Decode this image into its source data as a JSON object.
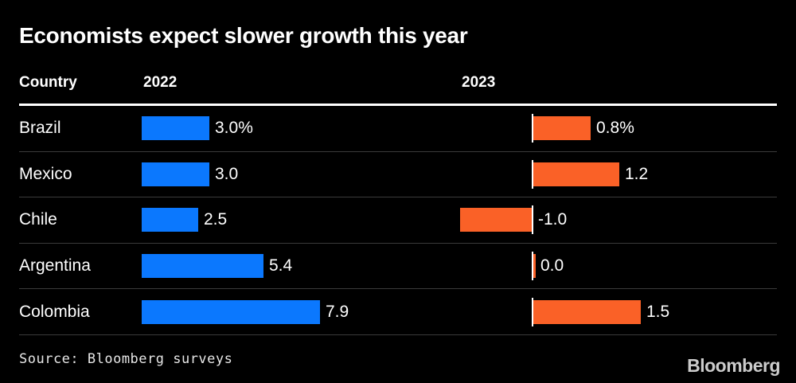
{
  "title": "Economists expect slower growth this year",
  "headers": {
    "country": "Country",
    "y2022": "2022",
    "y2023": "2023"
  },
  "rows": [
    {
      "country": "Brazil",
      "v2022": 3.0,
      "label2022": "3.0%",
      "v2023": 0.8,
      "label2023": "0.8%"
    },
    {
      "country": "Mexico",
      "v2022": 3.0,
      "label2022": "3.0",
      "v2023": 1.2,
      "label2023": "1.2"
    },
    {
      "country": "Chile",
      "v2022": 2.5,
      "label2022": "2.5",
      "v2023": -1.0,
      "label2023": "-1.0"
    },
    {
      "country": "Argentina",
      "v2022": 5.4,
      "label2022": "5.4",
      "v2023": 0.0,
      "label2023": "0.0"
    },
    {
      "country": "Colombia",
      "v2022": 7.9,
      "label2022": "7.9",
      "v2023": 1.5,
      "label2023": "1.5"
    }
  ],
  "source": "Source: Bloomberg surveys",
  "logo": "Bloomberg",
  "colors": {
    "background": "#000000",
    "text": "#ffffff",
    "bar2022": "#0b78fe",
    "bar2023": "#fa6127",
    "divider": "#3b3b3b",
    "rule": "#ffffff"
  },
  "chart_data": {
    "type": "bar",
    "orientation": "horizontal",
    "title": "Economists expect slower growth this year",
    "categories": [
      "Brazil",
      "Mexico",
      "Chile",
      "Argentina",
      "Colombia"
    ],
    "series": [
      {
        "name": "2022",
        "values": [
          3.0,
          3.0,
          2.5,
          5.4,
          7.9
        ]
      },
      {
        "name": "2023",
        "values": [
          0.8,
          1.2,
          -1.0,
          0.0,
          1.5
        ]
      }
    ],
    "value_unit": "%",
    "grid": false,
    "legend_position": "column-headers",
    "source": "Source: Bloomberg surveys"
  }
}
